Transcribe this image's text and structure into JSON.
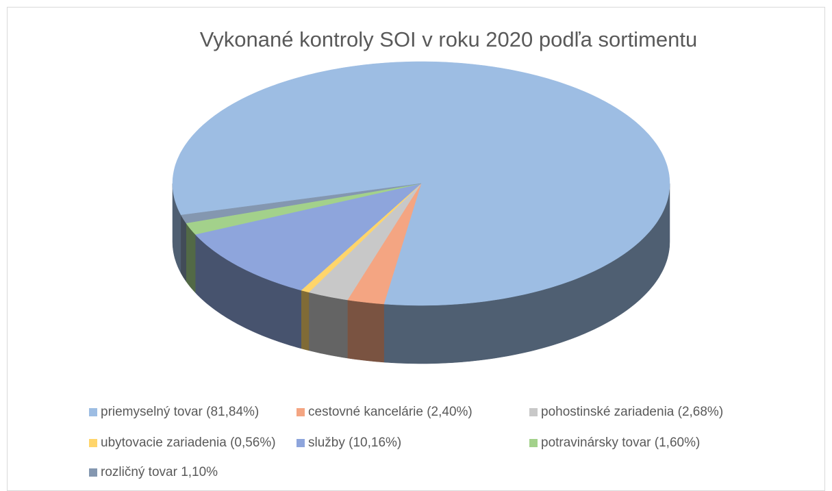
{
  "chart_data": {
    "type": "pie3d",
    "title": "Vykonané kontroly SOI v roku 2020 podľa sortimentu",
    "categories": [
      "priemyselný tovar (81,84%)",
      "cestovné kancelárie (2,40%)",
      "pohostinské zariadenia (2,68%)",
      "ubytovacie zariadenia (0,56%)",
      "služby (10,16%)",
      "potravinársky tovar (1,60%)",
      "rozličný tovar 1,10%"
    ],
    "values": [
      81.84,
      2.4,
      2.68,
      0.56,
      10.16,
      1.6,
      1.1
    ],
    "colors": [
      "#9dbde3",
      "#f4a582",
      "#c8c8c8",
      "#ffd56b",
      "#8ea5dc",
      "#a3d18b",
      "#8497b0"
    ],
    "legend": "bottom"
  }
}
